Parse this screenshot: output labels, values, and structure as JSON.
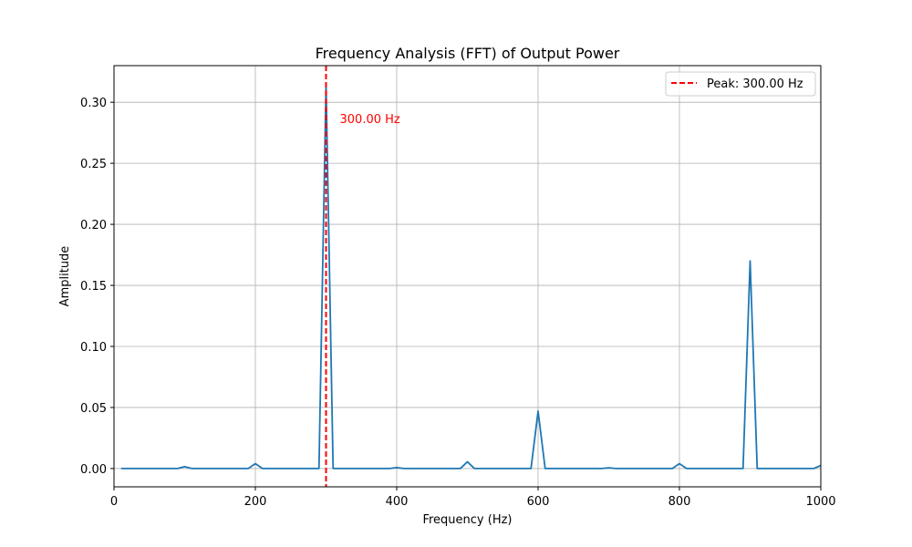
{
  "chart_data": {
    "type": "line",
    "title": "Frequency Analysis (FFT) of Output Power",
    "xlabel": "Frequency (Hz)",
    "ylabel": "Amplitude",
    "xlim": [
      0,
      1000
    ],
    "ylim": [
      -0.015,
      0.33
    ],
    "grid": true,
    "legend_position": "top-right",
    "x_ticks": [
      0,
      200,
      400,
      600,
      800,
      1000
    ],
    "x_tick_labels": [
      "0",
      "200",
      "400",
      "600",
      "800",
      "1000"
    ],
    "y_ticks": [
      0.0,
      0.05,
      0.1,
      0.15,
      0.2,
      0.25,
      0.3
    ],
    "y_tick_labels": [
      "0.00",
      "0.05",
      "0.10",
      "0.15",
      "0.20",
      "0.25",
      "0.30"
    ],
    "series": [
      {
        "color": "#1f77b4",
        "x": [
          10,
          20,
          30,
          40,
          50,
          60,
          70,
          80,
          90,
          100,
          110,
          120,
          130,
          140,
          150,
          160,
          170,
          180,
          190,
          200,
          210,
          220,
          230,
          240,
          250,
          260,
          270,
          280,
          290,
          300,
          310,
          320,
          330,
          340,
          350,
          360,
          370,
          380,
          390,
          400,
          410,
          420,
          430,
          440,
          450,
          460,
          470,
          480,
          490,
          500,
          510,
          520,
          530,
          540,
          550,
          560,
          570,
          580,
          590,
          600,
          610,
          620,
          630,
          640,
          650,
          660,
          670,
          680,
          690,
          700,
          710,
          720,
          730,
          740,
          750,
          760,
          770,
          780,
          790,
          800,
          810,
          820,
          830,
          840,
          850,
          860,
          870,
          880,
          890,
          900,
          910,
          920,
          930,
          940,
          950,
          960,
          970,
          980,
          990,
          1000
        ],
        "y": [
          0,
          0,
          0,
          0,
          0,
          0,
          0,
          0,
          0,
          0.0015,
          0,
          0,
          0,
          0,
          0,
          0,
          0,
          0,
          0,
          0.004,
          0,
          0,
          0,
          0,
          0,
          0,
          0,
          0,
          0,
          0.315,
          0,
          0,
          0,
          0,
          0,
          0,
          0,
          0,
          0,
          0.0008,
          0,
          0,
          0,
          0,
          0,
          0,
          0,
          0,
          0,
          0.0055,
          0,
          0,
          0,
          0,
          0,
          0,
          0,
          0,
          0,
          0.047,
          0,
          0,
          0,
          0,
          0,
          0,
          0,
          0,
          0,
          0.0006,
          0,
          0,
          0,
          0,
          0,
          0,
          0,
          0,
          0,
          0.004,
          0,
          0,
          0,
          0,
          0,
          0,
          0,
          0,
          0,
          0.17,
          0,
          0,
          0,
          0,
          0,
          0,
          0,
          0,
          0,
          0.0025
        ]
      }
    ],
    "peak": {
      "frequency": 300,
      "color": "#ff0000",
      "annotation_label": "300.00 Hz",
      "legend_label": "Peak: 300.00 Hz"
    }
  }
}
